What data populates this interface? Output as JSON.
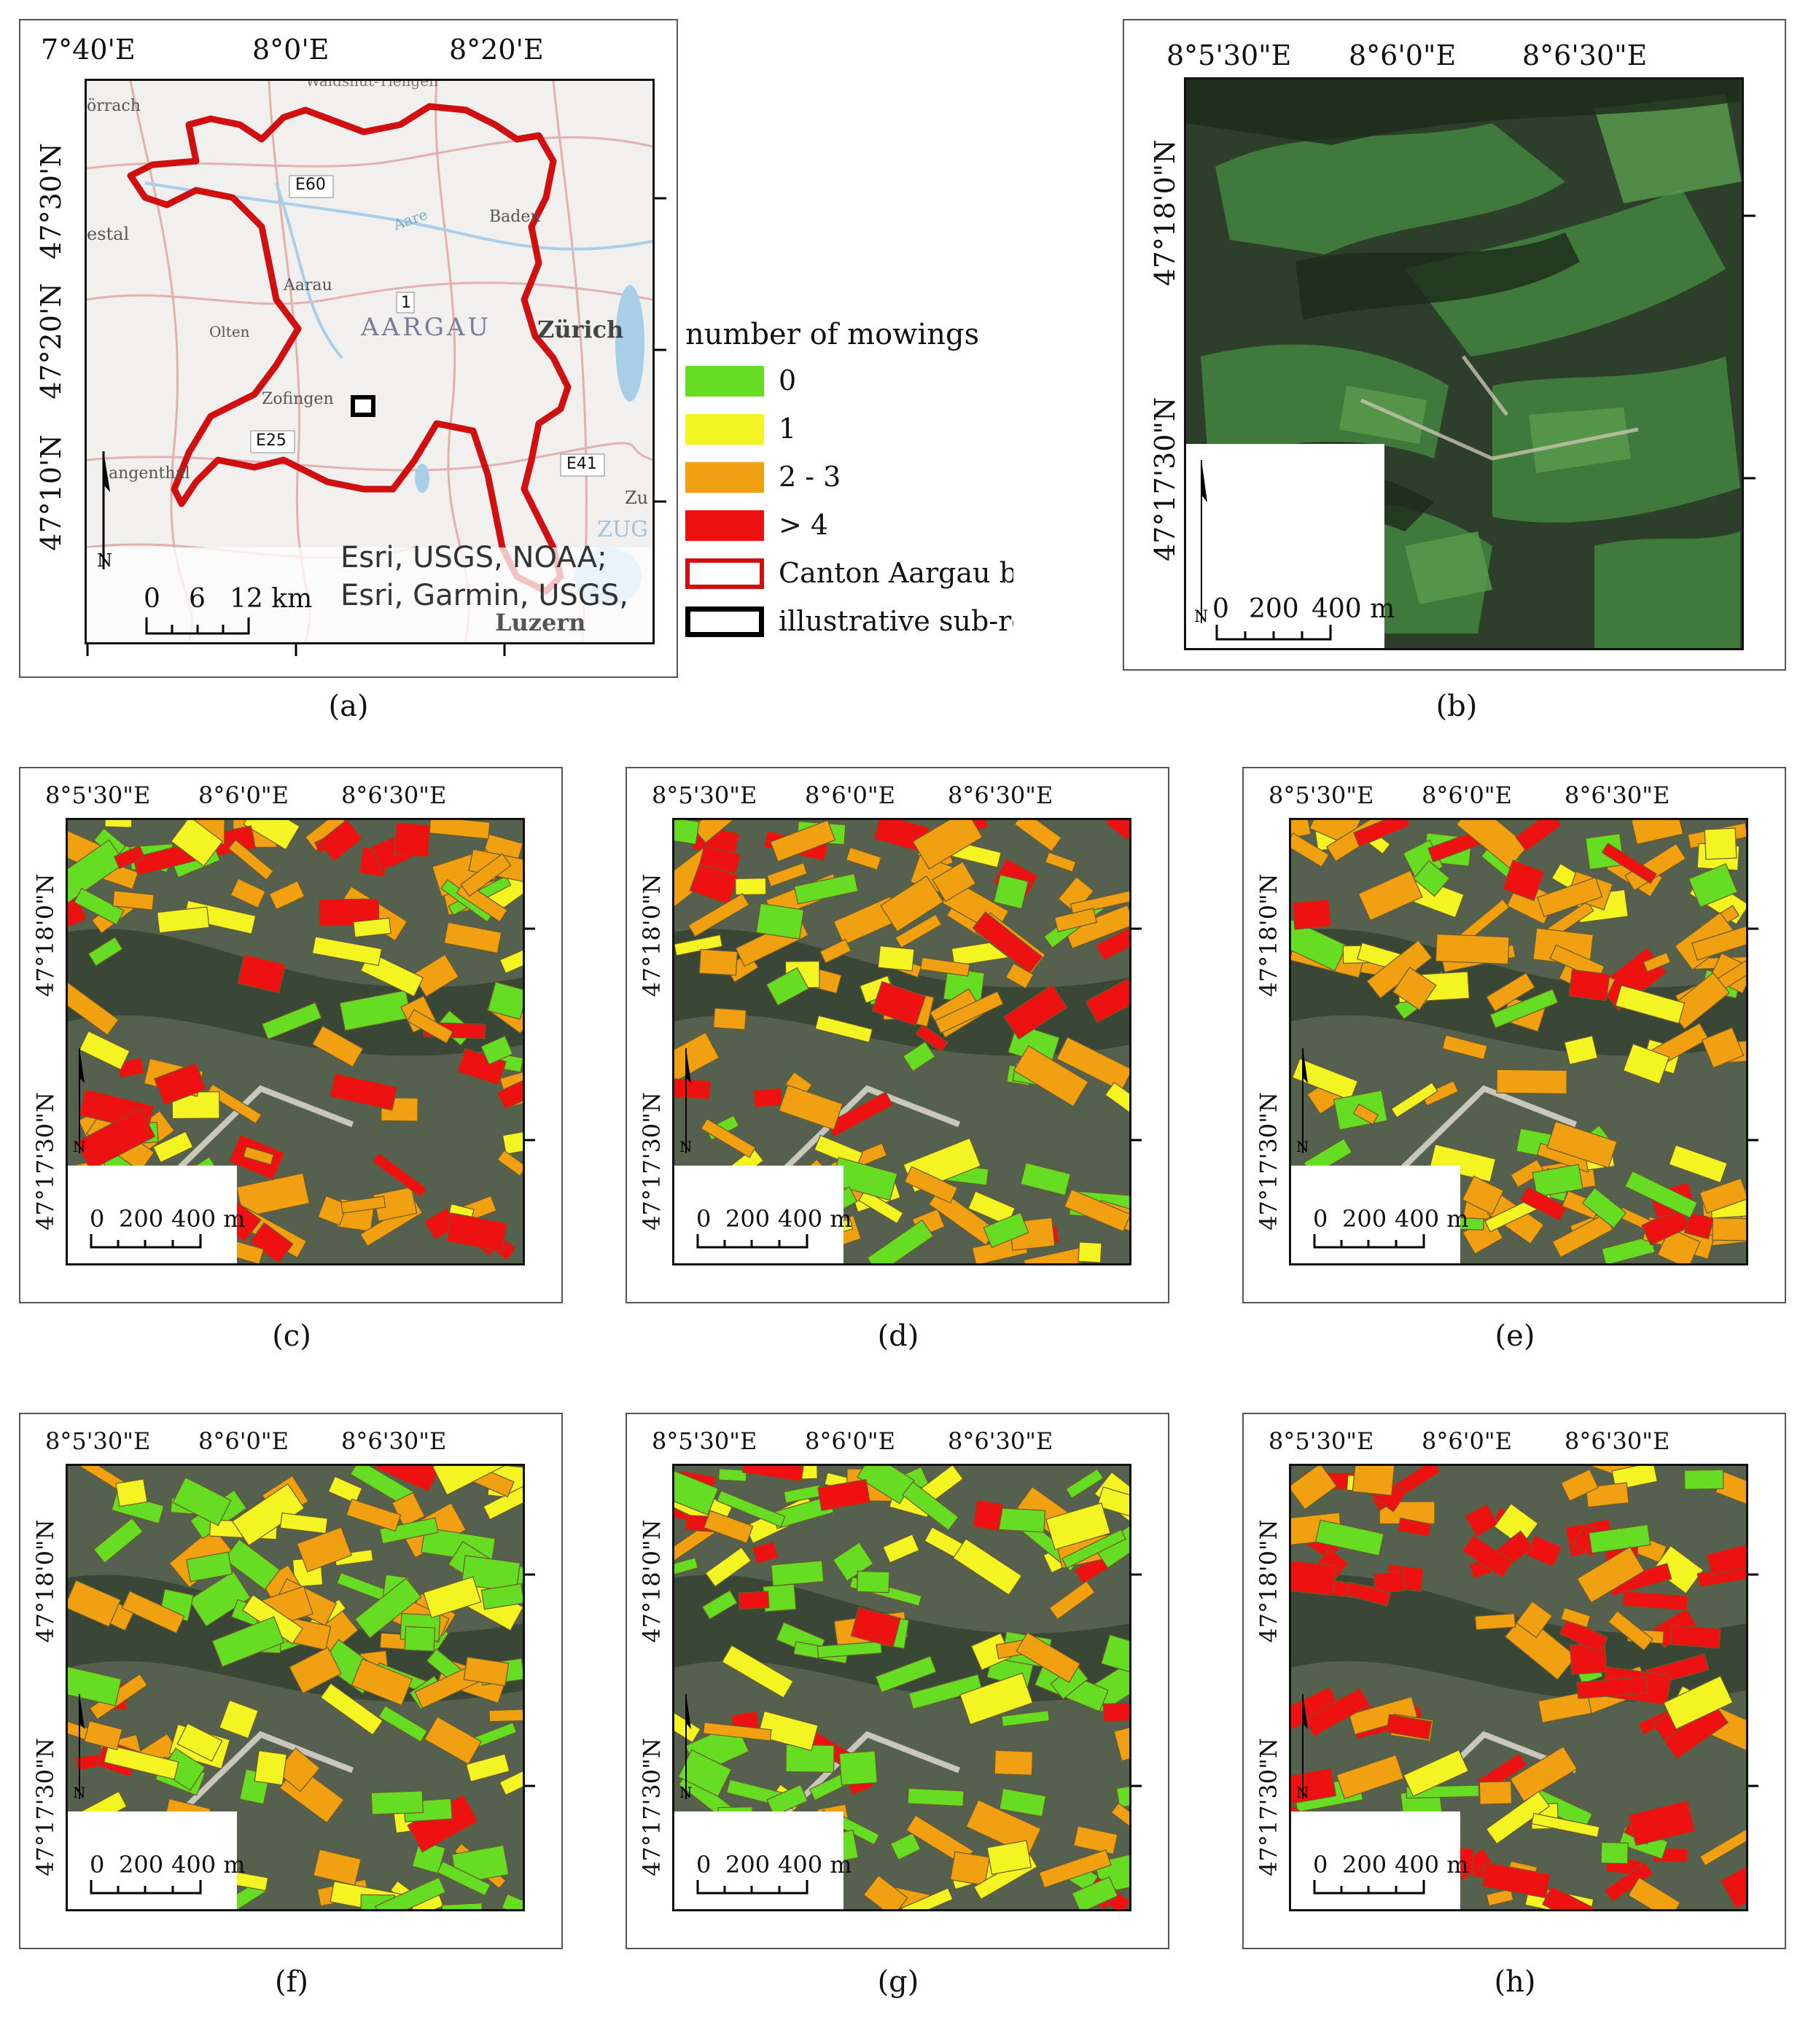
{
  "captions": [
    "(a)",
    "(b)",
    "(c)",
    "(d)",
    "(e)",
    "(f)",
    "(g)",
    "(h)"
  ],
  "panel_a": {
    "top_ticks": [
      "7°40'E",
      "8°0'E",
      "8°20'E"
    ],
    "left_ticks": [
      "47°30'N",
      "47°20'N",
      "47°10'N"
    ],
    "place_labels": {
      "aargau": "AARGAU",
      "zurich": "Zürich",
      "aarau": "Aarau",
      "olten": "Olten",
      "zofingen": "Zofingen",
      "baden": "Baden",
      "aare": "Aare",
      "lorrach": "örrach",
      "liestal": "estal",
      "langenthal": "angenthal",
      "luzern": "Luzern",
      "zug": "ZUG",
      "zu": "Zu",
      "waldshut": "Waldshut-Tiengen"
    },
    "road_labels": [
      "E60",
      "1",
      "E25",
      "E41"
    ],
    "attribution": [
      "Esri, USGS, NOAA;",
      "Esri, Garmin, USGS,"
    ],
    "scale": {
      "labels": [
        "0",
        "6",
        "12 km"
      ]
    },
    "boundary_color": "#d01010"
  },
  "legend": {
    "title": "number of mowings",
    "items": [
      {
        "label": "0",
        "color": "#66dd22"
      },
      {
        "label": "1",
        "color": "#f4f422"
      },
      {
        "label": "2 - 3",
        "color": "#f0a010"
      },
      {
        "label": "> 4",
        "color": "#ee1111"
      },
      {
        "label": "Canton Aargau bound",
        "color": "#d01010",
        "outline": true
      },
      {
        "label": "illustrative sub-region",
        "color": "#000000",
        "outline": true
      }
    ]
  },
  "subpanels": {
    "top_ticks": [
      "8°5'30\"E",
      "8°6'0\"E",
      "8°6'30\"E"
    ],
    "top_ticks_c": [
      "8°5'30\"E",
      "8°6'0\"E",
      "8°6'30\"E"
    ],
    "left_ticks": [
      "47°18'0\"N",
      "47°17'30\"N"
    ],
    "scale": {
      "labels": [
        "0",
        "200",
        "400 m"
      ]
    },
    "north": "N"
  }
}
